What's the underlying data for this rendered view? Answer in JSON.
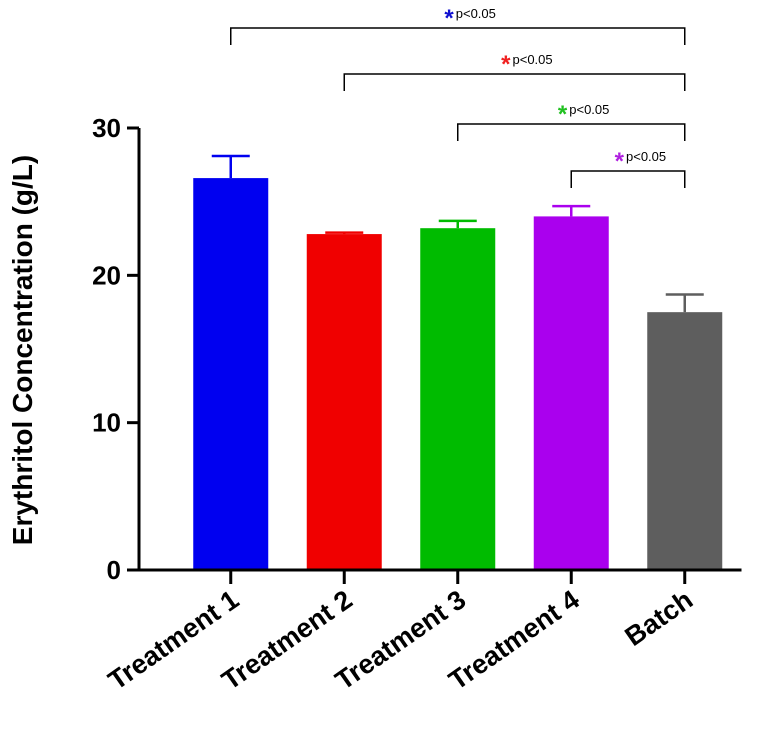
{
  "chart_data": {
    "type": "bar",
    "title": "",
    "xlabel": "",
    "ylabel": "Erythritol Concentration (g/L)",
    "ylim": [
      0,
      30
    ],
    "yticks": [
      0,
      10,
      20,
      30
    ],
    "categories": [
      "Treatment 1",
      "Treatment 2",
      "Treatment 3",
      "Treatment 4",
      "Batch"
    ],
    "values": [
      26.6,
      22.8,
      23.2,
      24.0,
      17.5
    ],
    "errors": [
      1.5,
      0.1,
      0.5,
      0.7,
      1.2
    ],
    "colors": [
      "#0000f0",
      "#f00000",
      "#00bb00",
      "#aa00ee",
      "#5e5e5e"
    ],
    "grid": false,
    "comparisons": [
      {
        "from": "Treatment 1",
        "to": "Batch",
        "star": "*",
        "label": "p<0.05",
        "color": "#1010d0"
      },
      {
        "from": "Treatment 2",
        "to": "Batch",
        "star": "*",
        "label": "p<0.05",
        "color": "#f02020"
      },
      {
        "from": "Treatment 3",
        "to": "Batch",
        "star": "*",
        "label": "p<0.05",
        "color": "#20c020"
      },
      {
        "from": "Treatment 4",
        "to": "Batch",
        "star": "*",
        "label": "p<0.05",
        "color": "#b020e0"
      }
    ]
  }
}
